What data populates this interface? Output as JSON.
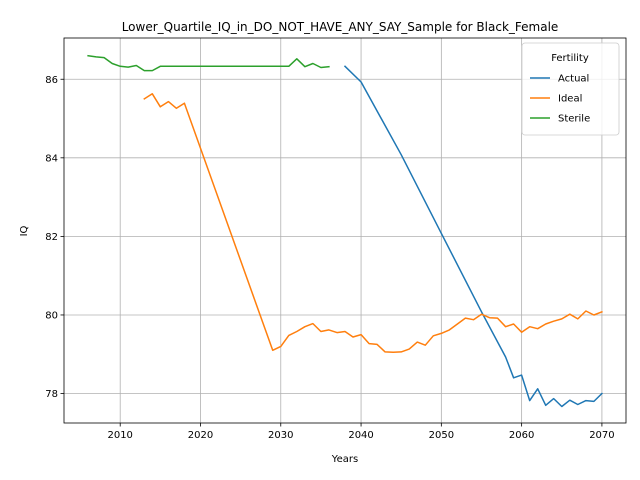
{
  "chart_data": {
    "type": "line",
    "title": "Lower_Quartile_IQ_in_DO_NOT_HAVE_ANY_SAY_Sample for Black_Female",
    "xlabel": "Years",
    "ylabel": "IQ",
    "xlim": [
      2003,
      2073
    ],
    "ylim": [
      77.25,
      87.05
    ],
    "xticks": [
      2010,
      2020,
      2030,
      2040,
      2050,
      2060,
      2070
    ],
    "yticks": [
      78,
      80,
      82,
      84,
      86
    ],
    "grid": true,
    "legend": {
      "title": "Fertility",
      "placement": "top-right"
    },
    "series": [
      {
        "name": "Actual",
        "color": "#1f77b4",
        "x": [
          2038,
          2040,
          2045,
          2050,
          2055,
          2058,
          2059,
          2060,
          2061,
          2062,
          2063,
          2064,
          2065,
          2066,
          2067,
          2068,
          2069,
          2070
        ],
        "y": [
          86.33,
          85.93,
          84.08,
          82.08,
          80.08,
          78.93,
          78.4,
          78.47,
          77.82,
          78.12,
          77.7,
          77.87,
          77.67,
          77.83,
          77.72,
          77.82,
          77.8,
          78.0
        ]
      },
      {
        "name": "Ideal",
        "color": "#ff7f0e",
        "x": [
          2013,
          2014,
          2015,
          2016,
          2017,
          2018,
          2029,
          2030,
          2031,
          2032,
          2033,
          2034,
          2035,
          2036,
          2037,
          2038,
          2039,
          2040,
          2041,
          2042,
          2043,
          2044,
          2045,
          2046,
          2047,
          2048,
          2049,
          2050,
          2051,
          2052,
          2053,
          2054,
          2055,
          2056,
          2057,
          2058,
          2059,
          2060,
          2061,
          2062,
          2063,
          2064,
          2065,
          2066,
          2067,
          2068,
          2069,
          2070
        ],
        "y": [
          85.5,
          85.63,
          85.3,
          85.43,
          85.26,
          85.39,
          79.1,
          79.2,
          79.48,
          79.58,
          79.7,
          79.78,
          79.58,
          79.62,
          79.55,
          79.58,
          79.44,
          79.5,
          79.27,
          79.25,
          79.06,
          79.05,
          79.06,
          79.13,
          79.31,
          79.23,
          79.47,
          79.53,
          79.62,
          79.77,
          79.92,
          79.88,
          80.02,
          79.93,
          79.92,
          79.7,
          79.77,
          79.56,
          79.7,
          79.65,
          79.77,
          79.84,
          79.9,
          80.02,
          79.9,
          80.1,
          80.0,
          80.08
        ]
      },
      {
        "name": "Sterile",
        "color": "#2ca02c",
        "x": [
          2006,
          2007,
          2008,
          2009,
          2010,
          2011,
          2012,
          2013,
          2014,
          2015,
          2016,
          2030,
          2031,
          2032,
          2033,
          2034,
          2035,
          2036
        ],
        "y": [
          86.6,
          86.57,
          86.55,
          86.4,
          86.33,
          86.31,
          86.35,
          86.22,
          86.22,
          86.33,
          86.33,
          86.33,
          86.33,
          86.52,
          86.32,
          86.4,
          86.3,
          86.32
        ]
      }
    ]
  }
}
